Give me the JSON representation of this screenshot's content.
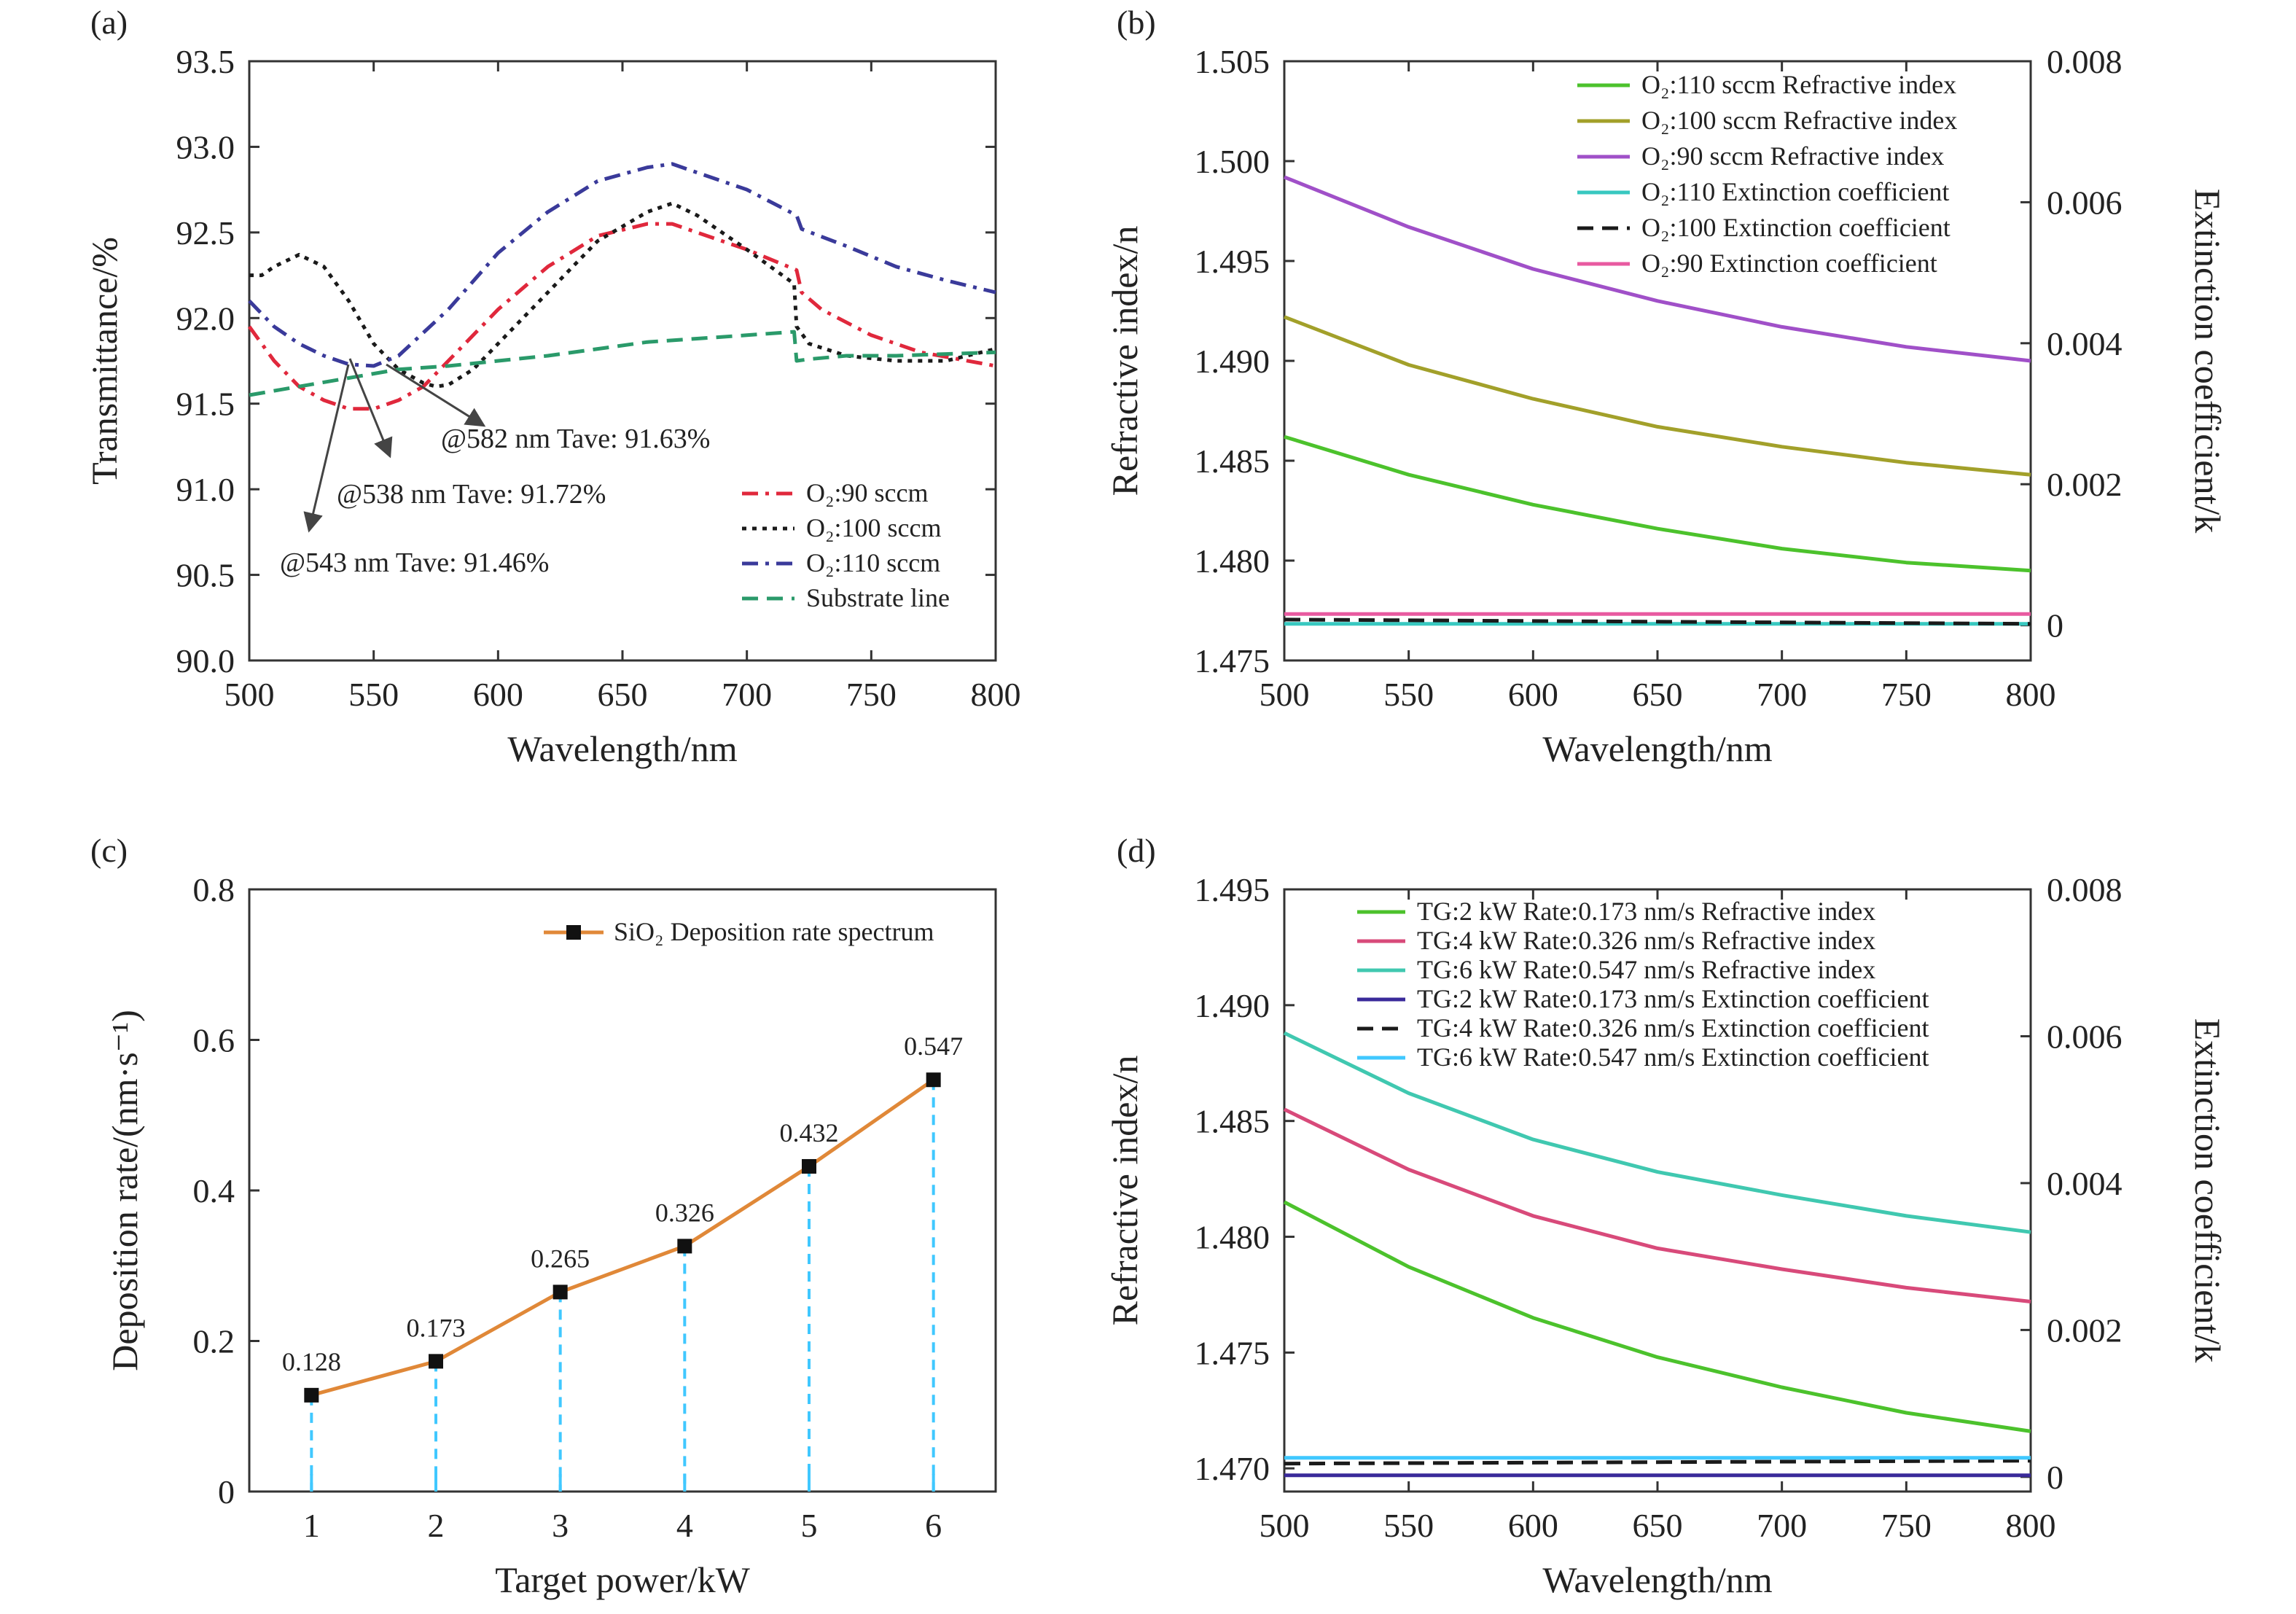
{
  "figure": {
    "colors": {
      "red": "#e0283c",
      "black": "#1a1a1a",
      "navy": "#3a3a9a",
      "teal": "#2a9a6a",
      "green": "#4cc22c",
      "olive": "#a2a02a",
      "purple": "#a050c8",
      "cyan": "#38c8c0",
      "pink": "#e85aa0",
      "magenta": "#d84a7a",
      "mint": "#40c8b0",
      "indigo": "#3a2a9a",
      "orange": "#e08838",
      "blue": "#40c8ff"
    }
  },
  "chart_data": [
    {
      "panel": "(a)",
      "type": "line",
      "xlabel": "Wavelength/nm",
      "ylabel": "Transmittance/%",
      "xlim": [
        500,
        800
      ],
      "ylim": [
        90.0,
        93.5
      ],
      "xticks": [
        "500",
        "550",
        "600",
        "650",
        "700",
        "750",
        "800"
      ],
      "yticks": [
        "90.0",
        "90.5",
        "91.0",
        "91.5",
        "92.0",
        "92.5",
        "93.0",
        "93.5"
      ],
      "grid": false,
      "legend_position": "lower-right",
      "series": [
        {
          "name": "O₂:90 sccm",
          "color_key": "red",
          "dash": "dashdot",
          "x": [
            500,
            510,
            520,
            530,
            540,
            550,
            560,
            570,
            580,
            600,
            620,
            640,
            660,
            670,
            680,
            700,
            720,
            722,
            730,
            750,
            770,
            800
          ],
          "y": [
            91.95,
            91.75,
            91.6,
            91.52,
            91.47,
            91.47,
            91.52,
            91.6,
            91.75,
            92.05,
            92.3,
            92.48,
            92.55,
            92.55,
            92.5,
            92.4,
            92.28,
            92.15,
            92.05,
            91.9,
            91.8,
            91.72
          ]
        },
        {
          "name": "O₂:100 sccm",
          "color_key": "black",
          "dash": "dotted",
          "x": [
            500,
            505,
            510,
            520,
            530,
            540,
            550,
            560,
            570,
            575,
            580,
            590,
            600,
            620,
            640,
            660,
            670,
            680,
            700,
            719,
            720,
            725,
            740,
            760,
            780,
            800
          ],
          "y": [
            92.25,
            92.25,
            92.3,
            92.37,
            92.3,
            92.1,
            91.85,
            91.7,
            91.62,
            91.6,
            91.61,
            91.7,
            91.85,
            92.15,
            92.45,
            92.62,
            92.67,
            92.6,
            92.4,
            92.2,
            91.95,
            91.85,
            91.78,
            91.75,
            91.75,
            91.82
          ]
        },
        {
          "name": "O₂:110 sccm",
          "color_key": "navy",
          "dash": "dashdot",
          "x": [
            500,
            510,
            520,
            530,
            540,
            550,
            560,
            580,
            600,
            620,
            640,
            660,
            670,
            680,
            700,
            720,
            722,
            740,
            760,
            780,
            800
          ],
          "y": [
            92.1,
            91.95,
            91.85,
            91.78,
            91.73,
            91.72,
            91.78,
            92.05,
            92.38,
            92.62,
            92.8,
            92.88,
            92.9,
            92.85,
            92.75,
            92.6,
            92.52,
            92.42,
            92.3,
            92.22,
            92.15
          ]
        },
        {
          "name": "Substrate line",
          "color_key": "teal",
          "dash": "dashed",
          "x": [
            500,
            520,
            540,
            560,
            580,
            600,
            620,
            640,
            660,
            680,
            700,
            719,
            720,
            725,
            740,
            760,
            780,
            800
          ],
          "y": [
            91.55,
            91.6,
            91.65,
            91.7,
            91.72,
            91.75,
            91.78,
            91.82,
            91.86,
            91.88,
            91.9,
            91.92,
            91.75,
            91.76,
            91.78,
            91.78,
            91.79,
            91.8
          ]
        }
      ],
      "annotations": [
        "@582 nm Tave: 91.63%",
        "@538 nm Tave: 91.72%",
        "@543 nm Tave: 91.46%"
      ]
    },
    {
      "panel": "(b)",
      "type": "line",
      "xlabel": "Wavelength/nm",
      "ylabel": "Refractive index/n",
      "y2label": "Extinction coefficient/k",
      "xlim": [
        500,
        800
      ],
      "ylim": [
        1.475,
        1.505
      ],
      "y2lim": [
        -0.0005,
        0.008
      ],
      "xticks": [
        "500",
        "550",
        "600",
        "650",
        "700",
        "750",
        "800"
      ],
      "yticks": [
        "1.475",
        "1.480",
        "1.485",
        "1.490",
        "1.495",
        "1.500",
        "1.505"
      ],
      "y2ticks": [
        "0",
        "0.002",
        "0.004",
        "0.006",
        "0.008"
      ],
      "grid": false,
      "legend_position": "top-right",
      "series": [
        {
          "name": "O₂:110 sccm Refractive index",
          "axis": "left",
          "color_key": "green",
          "dash": "solid",
          "x": [
            500,
            550,
            600,
            650,
            700,
            750,
            800
          ],
          "y": [
            1.4862,
            1.4843,
            1.4828,
            1.4816,
            1.4806,
            1.4799,
            1.4795
          ]
        },
        {
          "name": "O₂:100 sccm Refractive index",
          "axis": "left",
          "color_key": "olive",
          "dash": "solid",
          "x": [
            500,
            550,
            600,
            650,
            700,
            750,
            800
          ],
          "y": [
            1.4922,
            1.4898,
            1.4881,
            1.4867,
            1.4857,
            1.4849,
            1.4843
          ]
        },
        {
          "name": "O₂:90 sccm Refractive index",
          "axis": "left",
          "color_key": "purple",
          "dash": "solid",
          "x": [
            500,
            550,
            600,
            650,
            700,
            750,
            800
          ],
          "y": [
            1.4992,
            1.4967,
            1.4946,
            1.493,
            1.4917,
            1.4907,
            1.49
          ]
        },
        {
          "name": "O₂:110 Extinction coefficient",
          "axis": "right",
          "color_key": "cyan",
          "dash": "solid",
          "x": [
            500,
            800
          ],
          "y": [
            2e-05,
            2e-05
          ]
        },
        {
          "name": "O₂:100 Extinction coefficient",
          "axis": "right",
          "color_key": "black",
          "dash": "dashed",
          "x": [
            500,
            800
          ],
          "y": [
            8e-05,
            2e-05
          ]
        },
        {
          "name": "O₂:90 Extinction coefficient",
          "axis": "right",
          "color_key": "pink",
          "dash": "solid",
          "x": [
            500,
            800
          ],
          "y": [
            0.00016,
            0.00016
          ]
        }
      ]
    },
    {
      "panel": "(c)",
      "type": "line",
      "xlabel": "Target power/kW",
      "ylabel": "Deposition rate/(nm·s⁻¹)",
      "xlim": [
        0.5,
        6.5
      ],
      "ylim": [
        0,
        0.8
      ],
      "xticks": [
        "1",
        "2",
        "3",
        "4",
        "5",
        "6"
      ],
      "yticks": [
        "0",
        "0.2",
        "0.4",
        "0.6",
        "0.8"
      ],
      "grid": false,
      "legend_position": "top-right",
      "series": [
        {
          "name": "SiO₂ Deposition rate spectrum",
          "color_key": "orange",
          "x": [
            1,
            2,
            3,
            4,
            5,
            6
          ],
          "y": [
            0.128,
            0.173,
            0.265,
            0.326,
            0.432,
            0.547
          ],
          "labels": [
            "0.128",
            "0.173",
            "0.265",
            "0.326",
            "0.432",
            "0.547"
          ]
        }
      ]
    },
    {
      "panel": "(d)",
      "type": "line",
      "xlabel": "Wavelength/nm",
      "ylabel": "Refractive index/n",
      "y2label": "Extinction coefficient/k",
      "xlim": [
        500,
        800
      ],
      "ylim": [
        1.469,
        1.495
      ],
      "y2lim": [
        -0.0002,
        0.008
      ],
      "xticks": [
        "500",
        "550",
        "600",
        "650",
        "700",
        "750",
        "800"
      ],
      "yticks": [
        "1.470",
        "1.475",
        "1.480",
        "1.485",
        "1.490",
        "1.495"
      ],
      "y2ticks": [
        "0",
        "0.002",
        "0.004",
        "0.006",
        "0.008"
      ],
      "grid": false,
      "legend_position": "top-right",
      "series": [
        {
          "name": "TG:2 kW Rate:0.173 nm/s Refractive index",
          "axis": "left",
          "color_key": "green",
          "dash": "solid",
          "x": [
            500,
            550,
            600,
            650,
            700,
            750,
            800
          ],
          "y": [
            1.4815,
            1.4787,
            1.4765,
            1.4748,
            1.4735,
            1.4724,
            1.4716
          ]
        },
        {
          "name": "TG:4 kW Rate:0.326 nm/s Refractive index",
          "axis": "left",
          "color_key": "magenta",
          "dash": "solid",
          "x": [
            500,
            550,
            600,
            650,
            700,
            750,
            800
          ],
          "y": [
            1.4855,
            1.4829,
            1.4809,
            1.4795,
            1.4786,
            1.4778,
            1.4772
          ]
        },
        {
          "name": "TG:6 kW Rate:0.547 nm/s Refractive index",
          "axis": "left",
          "color_key": "mint",
          "dash": "solid",
          "x": [
            500,
            550,
            600,
            650,
            700,
            750,
            800
          ],
          "y": [
            1.4888,
            1.4862,
            1.4842,
            1.4828,
            1.4818,
            1.4809,
            1.4802
          ]
        },
        {
          "name": "TG:2 kW Rate:0.173 nm/s Extinction coefficient",
          "axis": "right",
          "color_key": "indigo",
          "dash": "solid",
          "x": [
            500,
            800
          ],
          "y": [
            2e-05,
            2e-05
          ]
        },
        {
          "name": "TG:4 kW Rate:0.326 nm/s Extinction coefficient",
          "axis": "right",
          "color_key": "black",
          "dash": "dashed",
          "x": [
            500,
            800
          ],
          "y": [
            0.00018,
            0.00022
          ]
        },
        {
          "name": "TG:6 kW Rate:0.547 nm/s Extinction coefficient",
          "axis": "right",
          "color_key": "blue",
          "dash": "solid",
          "x": [
            500,
            800
          ],
          "y": [
            0.00026,
            0.00026
          ]
        }
      ]
    }
  ]
}
